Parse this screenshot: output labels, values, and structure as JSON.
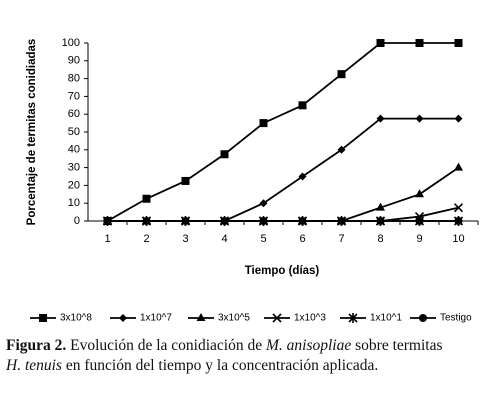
{
  "chart_data": {
    "type": "line",
    "y_label": "Porcentaje de termitas conidiadas",
    "x_label": "Tiempo (días)",
    "categories": [
      "1",
      "2",
      "3",
      "4",
      "5",
      "6",
      "7",
      "8",
      "9",
      "10"
    ],
    "ylim": [
      0,
      100
    ],
    "yticks": [
      0,
      10,
      20,
      30,
      40,
      50,
      60,
      70,
      80,
      90,
      100
    ],
    "grid": false,
    "series": [
      {
        "name": "3x10^8",
        "color": "#000000",
        "marker": "square",
        "values": [
          0,
          12.5,
          22.5,
          37.5,
          55,
          65,
          82.5,
          100,
          100,
          100
        ]
      },
      {
        "name": "1x10^7",
        "color": "#000000",
        "marker": "diamond",
        "values": [
          0,
          0,
          0,
          0,
          10,
          25,
          40,
          57.5,
          57.5,
          57.5
        ]
      },
      {
        "name": "3x10^5",
        "color": "#000000",
        "marker": "triangle",
        "values": [
          0,
          0,
          0,
          0,
          0,
          0,
          0,
          7.5,
          15,
          30
        ]
      },
      {
        "name": "1x10^3",
        "color": "#000000",
        "marker": "x",
        "values": [
          0,
          0,
          0,
          0,
          0,
          0,
          0,
          0,
          2.5,
          7.5
        ]
      },
      {
        "name": "1x10^1",
        "color": "#000000",
        "marker": "star",
        "values": [
          0,
          0,
          0,
          0,
          0,
          0,
          0,
          0,
          0,
          0
        ]
      },
      {
        "name": "Testigo",
        "color": "#000000",
        "marker": "circle",
        "values": [
          0,
          0,
          0,
          0,
          0,
          0,
          0,
          0,
          0,
          0
        ]
      }
    ]
  },
  "caption": {
    "lines": [
      [
        {
          "text": "Figura 2.",
          "style": "bold"
        },
        {
          "text": " Evolución de la conidiación de ",
          "style": "normal"
        },
        {
          "text": "M. anisopliae",
          "style": "italic"
        },
        {
          "text": " sobre termitas",
          "style": "normal"
        }
      ],
      [
        {
          "text": "H. tenuis",
          "style": "italic"
        },
        {
          "text": " en función del tiempo y la concentración aplicada.",
          "style": "normal"
        }
      ]
    ]
  }
}
